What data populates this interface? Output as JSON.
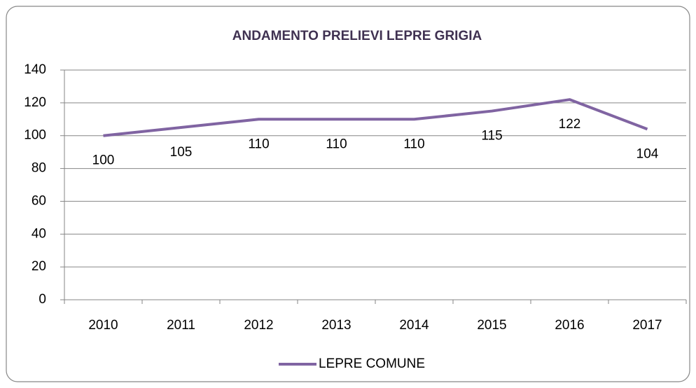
{
  "chart_data": {
    "type": "line",
    "title": "ANDAMENTO PRELIEVI LEPRE GRIGIA",
    "categories": [
      "2010",
      "2011",
      "2012",
      "2013",
      "2014",
      "2015",
      "2016",
      "2017"
    ],
    "series": [
      {
        "name": "LEPRE COMUNE",
        "color": "#8064a2",
        "values": [
          100,
          105,
          110,
          110,
          110,
          115,
          122,
          104
        ]
      }
    ],
    "ylim": [
      0,
      140
    ],
    "yticks": [
      0,
      20,
      40,
      60,
      80,
      100,
      120,
      140
    ],
    "grid": true,
    "legend": "bottom"
  }
}
